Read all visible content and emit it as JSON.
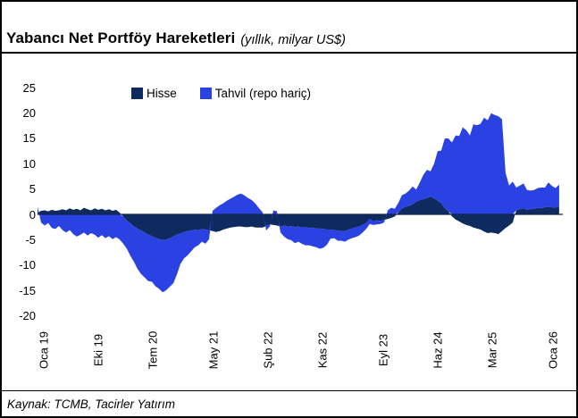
{
  "header": {
    "title": "Yabancı Net Portföy Hareketleri",
    "subtitle": "(yıllık, milyar US$)"
  },
  "footer": {
    "source": "Kaynak: TCMB, Tacirler Yatırım"
  },
  "chart_data": {
    "type": "area",
    "stacked": true,
    "title": "Yabancı Net Portföy Hareketleri",
    "subtitle": "(yıllık, milyar US$)",
    "unit": "milyar US$",
    "grid": false,
    "legend_position": "top",
    "ylim": [
      -20,
      25
    ],
    "yticks": [
      25,
      20,
      15,
      10,
      5,
      0,
      -5,
      -10,
      -15,
      -20
    ],
    "xticks": [
      {
        "t": 0,
        "label": "Oca 19"
      },
      {
        "t": 9,
        "label": "Eki 19"
      },
      {
        "t": 18,
        "label": "Tem 20"
      },
      {
        "t": 28,
        "label": "May 21"
      },
      {
        "t": 37,
        "label": "Şub 22"
      },
      {
        "t": 46,
        "label": "Kas 22"
      },
      {
        "t": 56,
        "label": "Eyl 23"
      },
      {
        "t": 65,
        "label": "Haz 24"
      },
      {
        "t": 74,
        "label": "Mar 25"
      },
      {
        "t": 84,
        "label": "Oca 26"
      }
    ],
    "x_months_since_jan19": [
      -1.03,
      -0.44,
      0.15,
      0.74,
      1.33,
      1.92,
      2.5,
      3.09,
      3.68,
      4.27,
      4.86,
      5.45,
      6.04,
      6.63,
      7.22,
      7.81,
      8.4,
      8.99,
      9.58,
      10.17,
      10.76,
      11.35,
      11.94,
      12.52,
      13.11,
      13.7,
      14.29,
      14.88,
      15.47,
      16.06,
      16.65,
      17.24,
      17.83,
      18.42,
      19.01,
      19.6,
      20.19,
      20.78,
      21.37,
      21.96,
      22.55,
      23.13,
      23.72,
      24.31,
      24.9,
      25.49,
      26.08,
      26.67,
      27.26,
      27.85,
      28.44,
      29.03,
      29.62,
      30.21,
      30.8,
      31.39,
      31.97,
      32.56,
      33.15,
      33.74,
      34.33,
      34.92,
      35.51,
      36.1,
      36.69,
      37.28,
      37.87,
      38.46,
      39.05,
      39.64,
      40.23,
      40.82,
      41.41,
      42.0,
      42.58,
      43.17,
      43.76,
      44.35,
      44.94,
      45.53,
      46.12,
      46.71,
      47.3,
      47.89,
      48.48,
      49.07,
      49.66,
      50.25,
      50.84,
      51.42,
      52.01,
      52.6,
      53.19,
      53.78,
      54.37,
      54.96,
      55.55,
      56.14,
      56.73,
      57.32,
      57.91,
      58.5,
      59.08,
      59.67,
      60.26,
      60.85,
      61.44,
      62.03,
      62.62,
      63.21,
      63.8,
      64.39,
      64.98,
      65.57,
      66.16,
      66.75,
      67.34,
      67.93,
      68.52,
      69.11,
      69.7,
      70.29,
      70.87,
      71.46,
      72.05,
      72.64,
      73.23,
      73.82,
      74.41,
      75.0,
      75.59,
      76.18,
      76.77,
      77.36,
      77.95,
      78.54,
      79.13,
      79.72,
      80.31,
      80.9,
      81.49,
      82.08,
      82.67,
      83.25,
      83.84,
      84.43,
      85.02
    ],
    "series": [
      {
        "name": "Hisse",
        "color": "#0E2A5E",
        "values": [
          0.3,
          0.7,
          0.8,
          0.6,
          0.9,
          0.7,
          0.8,
          1.0,
          0.8,
          1.2,
          0.9,
          1.1,
          0.8,
          1.3,
          1.0,
          0.8,
          1.2,
          0.9,
          1.1,
          0.8,
          1.0,
          0.7,
          0.9,
          0.3,
          -0.5,
          -1.2,
          -1.8,
          -2.4,
          -2.8,
          -3.2,
          -3.6,
          -4.0,
          -4.3,
          -4.6,
          -4.9,
          -5.1,
          -5.0,
          -4.7,
          -4.4,
          -4.0,
          -3.8,
          -3.5,
          -3.3,
          -3.2,
          -3.0,
          -3.1,
          -2.9,
          -3.0,
          -3.1,
          -3.3,
          -3.5,
          -3.3,
          -3.0,
          -2.8,
          -2.6,
          -2.5,
          -2.4,
          -2.4,
          -2.5,
          -2.5,
          -2.4,
          -2.6,
          -2.6,
          -2.6,
          -2.3,
          -2.0,
          -2.1,
          -2.2,
          -2.4,
          -2.2,
          -2.4,
          -2.3,
          -2.5,
          -2.4,
          -2.6,
          -2.5,
          -2.7,
          -2.6,
          -2.8,
          -2.8,
          -2.9,
          -3.0,
          -3.0,
          -3.1,
          -3.2,
          -3.3,
          -3.3,
          -3.0,
          -2.8,
          -2.6,
          -2.4,
          -2.1,
          -1.7,
          -0.9,
          -1.4,
          -1.2,
          -1.3,
          -1.1,
          -0.9,
          -0.7,
          -0.4,
          0.4,
          1.2,
          1.5,
          1.7,
          2.0,
          2.5,
          2.8,
          3.0,
          3.2,
          3.5,
          3.2,
          2.7,
          2.2,
          1.2,
          0.6,
          -0.4,
          -1.0,
          -1.4,
          -1.8,
          -2.1,
          -2.3,
          -2.6,
          -2.8,
          -3.0,
          -3.4,
          -3.7,
          -3.6,
          -3.7,
          -3.9,
          -3.3,
          -2.7,
          -2.2,
          -1.6,
          0.8,
          1.0,
          1.2,
          0.9,
          1.0,
          1.1,
          1.3,
          1.2,
          1.4,
          1.5,
          1.4,
          1.3,
          1.6
        ]
      },
      {
        "name": "Tahvil (repo hariç)",
        "color": "#2B42E3",
        "values": [
          1.2,
          -1.6,
          -2.2,
          -1.7,
          -2.7,
          -2.9,
          -2.3,
          -3.1,
          -3.6,
          -3.1,
          -3.9,
          -4.4,
          -4.0,
          -3.6,
          -4.2,
          -3.7,
          -4.0,
          -4.6,
          -4.1,
          -4.7,
          -4.3,
          -4.9,
          -4.5,
          -5.0,
          -5.3,
          -5.6,
          -6.4,
          -7.0,
          -8.0,
          -8.6,
          -8.9,
          -9.2,
          -9.0,
          -9.6,
          -9.8,
          -10.3,
          -10.0,
          -9.6,
          -9.2,
          -7.9,
          -6.0,
          -5.2,
          -4.8,
          -4.1,
          -3.5,
          -3.0,
          -2.5,
          -2.8,
          -1.8,
          0.7,
          1.3,
          1.8,
          2.2,
          2.7,
          3.1,
          3.5,
          3.9,
          4.1,
          3.7,
          3.2,
          2.8,
          2.1,
          1.2,
          0.4,
          -0.9,
          -0.4,
          0.8,
          0.6,
          -1.2,
          -2.2,
          -2.5,
          -2.8,
          -3.2,
          -3.0,
          -3.2,
          -3.6,
          -3.4,
          -3.7,
          -3.7,
          -4.0,
          -3.7,
          -3.0,
          -1.8,
          -1.6,
          -2.0,
          -1.9,
          -2.1,
          -2.0,
          -1.9,
          -1.9,
          -1.8,
          -1.5,
          -1.2,
          -1.0,
          -0.7,
          -0.8,
          -0.6,
          -0.5,
          0.8,
          1.3,
          1.1,
          1.9,
          2.6,
          2.6,
          3.0,
          3.5,
          2.4,
          3.5,
          4.8,
          5.6,
          5.0,
          6.8,
          9.8,
          10.4,
          13.8,
          14.4,
          14.2,
          15.6,
          15.5,
          17.2,
          16.6,
          15.6,
          17.8,
          17.6,
          17.9,
          19.1,
          18.6,
          20.0,
          19.6,
          19.4,
          18.8,
          8.2,
          5.7,
          6.5,
          4.5,
          4.7,
          4.9,
          3.9,
          3.7,
          3.7,
          3.9,
          4.1,
          3.9,
          4.8,
          4.2,
          3.9,
          4.3
        ]
      }
    ],
    "axis_color": "#16254F"
  }
}
